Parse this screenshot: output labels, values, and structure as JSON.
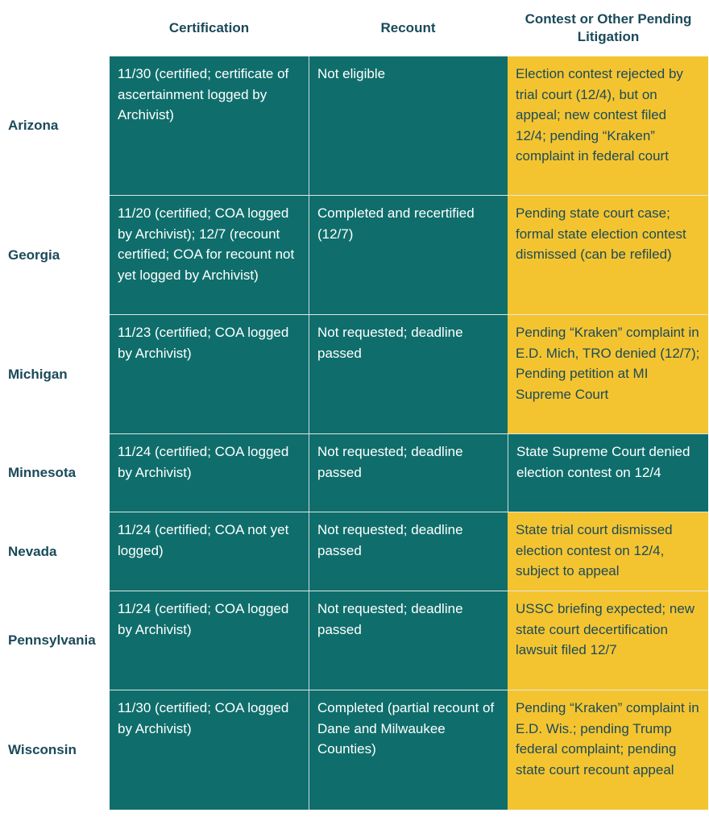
{
  "headers": {
    "certification": "Certification",
    "recount": "Recount",
    "contest": "Contest or Other Pending Litigation"
  },
  "colors": {
    "teal": "#0f6e6c",
    "yellow": "#f4c430",
    "heading": "#1b4a5a"
  },
  "rows": [
    {
      "state": "Arizona",
      "certification": "11/30 (certified; certificate of ascertainment logged by Archivist)",
      "recount": "Not eligible",
      "contest": "Election contest rejected by trial court (12/4), but on appeal; new contest filed 12/4; pending “Kraken” complaint in federal court",
      "contest_style": "yellow"
    },
    {
      "state": "Georgia",
      "certification": "11/20 (certified; COA logged by Archivist); 12/7 (recount certified; COA for recount not yet logged by Archivist)",
      "recount": "Completed and recertified (12/7)",
      "contest": "Pending state court case; formal state election contest dismissed (can be refiled)",
      "contest_style": "yellow"
    },
    {
      "state": "Michigan",
      "certification": "11/23 (certified; COA logged by Archivist)",
      "recount": "Not requested; deadline passed",
      "contest": "Pending “Kraken” complaint in E.D. Mich, TRO denied (12/7); Pending petition at MI Supreme Court",
      "contest_style": "yellow"
    },
    {
      "state": "Minnesota",
      "certification": "11/24 (certified; COA logged by Archivist)",
      "recount": "Not requested; deadline passed",
      "contest": "State Supreme Court denied election contest on 12/4",
      "contest_style": "teal"
    },
    {
      "state": "Nevada",
      "certification": "11/24 (certified; COA not yet logged)",
      "recount": "Not requested; deadline passed",
      "contest": "State trial court dismissed election contest on 12/4, subject to appeal",
      "contest_style": "yellow"
    },
    {
      "state": "Pennsylvania",
      "certification": "11/24 (certified; COA logged by Archivist)",
      "recount": "Not requested; deadline passed",
      "contest": "USSC briefing expected; new state court decertification lawsuit filed 12/7",
      "contest_style": "yellow"
    },
    {
      "state": "Wisconsin",
      "certification": "11/30 (certified; COA logged by Archivist)",
      "recount": "Completed (partial recount of Dane and Milwaukee Counties)",
      "contest": "Pending “Kraken” complaint in E.D. Wis.; pending Trump federal complaint; pending state court recount appeal",
      "contest_style": "yellow"
    }
  ]
}
